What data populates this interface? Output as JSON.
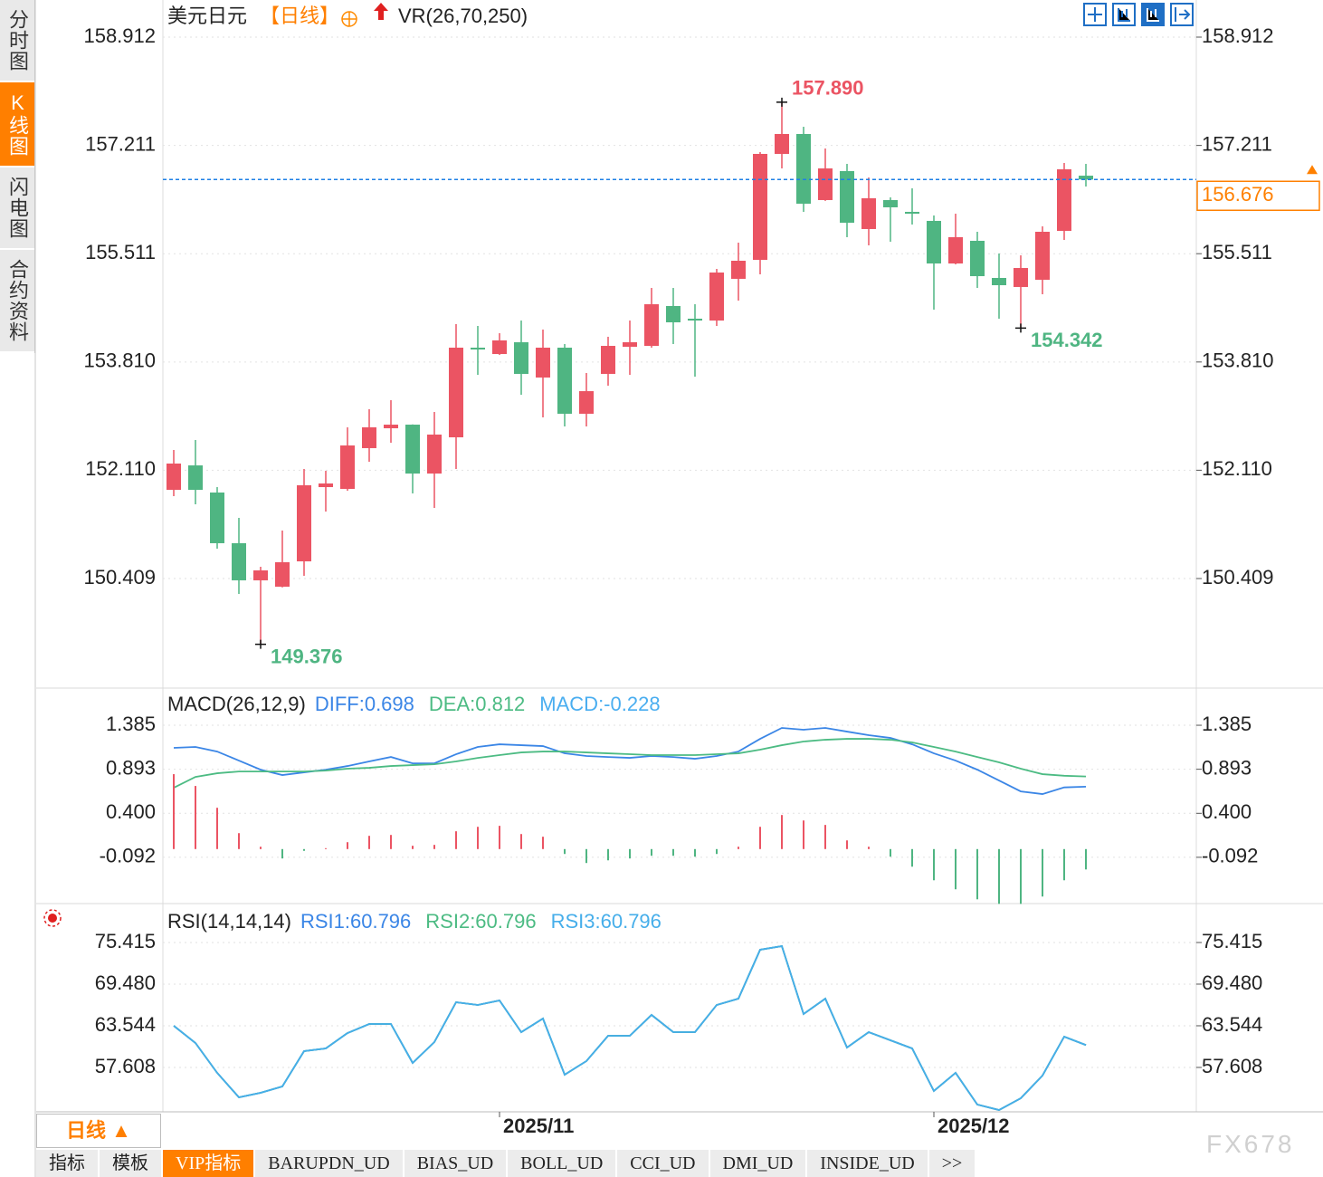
{
  "ui": {
    "sidebar_tabs": [
      "分时图",
      "K线图",
      "闪电图",
      "合约资料"
    ],
    "active_sidebar_tab": 1,
    "period": "日线",
    "period_arrow": "▲",
    "bottom_tabs": [
      "指标",
      "模板",
      "VIP指标",
      "BARUPDN_UD",
      "BIAS_UD",
      "BOLL_UD",
      "CCI_UD",
      "DMI_UD",
      "INSIDE_UD",
      ">>"
    ],
    "active_bottom_tab": 2,
    "watermark": "FX678"
  },
  "chart_data": [
    {
      "type": "candlestick",
      "title": "美元日元",
      "period": "【日线】",
      "indicator": "VR(26,70,250)",
      "categories": [
        null,
        null,
        null,
        null,
        null,
        null,
        null,
        null,
        null,
        null,
        null,
        null,
        null,
        null,
        null,
        "2025/11",
        null,
        null,
        null,
        null,
        null,
        null,
        null,
        null,
        null,
        null,
        null,
        null,
        null,
        null,
        null,
        null,
        null,
        null,
        null,
        "2025/12",
        null,
        null,
        null,
        null,
        null,
        null,
        null
      ],
      "open": [
        151.802,
        152.186,
        151.76,
        150.964,
        150.381,
        150.281,
        150.679,
        151.845,
        151.817,
        152.457,
        152.769,
        152.826,
        152.058,
        152.627,
        154.035,
        153.935,
        154.12,
        153.566,
        154.035,
        152.997,
        153.623,
        154.049,
        154.063,
        154.689,
        154.49,
        154.461,
        155.116,
        155.414,
        157.078,
        157.391,
        156.353,
        156.808,
        155.898,
        156.353,
        156.168,
        156.026,
        155.357,
        155.713,
        155.13,
        154.988,
        155.101,
        155.869,
        156.736
      ],
      "high": [
        152.428,
        152.585,
        151.845,
        151.362,
        150.594,
        151.163,
        152.13,
        152.101,
        152.784,
        153.068,
        153.21,
        152.83,
        153.025,
        154.405,
        154.376,
        154.262,
        154.461,
        154.319,
        154.092,
        153.637,
        154.206,
        154.461,
        154.973,
        154.973,
        154.717,
        155.272,
        155.684,
        157.106,
        157.89,
        157.504,
        157.163,
        156.921,
        156.708,
        156.395,
        156.537,
        156.111,
        156.139,
        155.855,
        155.514,
        155.485,
        155.94,
        156.936,
        156.921
      ],
      "low": [
        151.703,
        151.575,
        150.878,
        150.167,
        149.376,
        150.27,
        150.452,
        151.461,
        151.788,
        152.243,
        152.542,
        151.746,
        151.518,
        152.13,
        153.608,
        153.921,
        153.295,
        152.94,
        152.798,
        152.798,
        153.438,
        153.608,
        154.035,
        154.092,
        153.58,
        154.376,
        154.774,
        155.187,
        156.85,
        156.168,
        156.34,
        155.77,
        155.642,
        155.699,
        155.969,
        154.632,
        155.343,
        154.973,
        154.49,
        154.342,
        154.874,
        155.727,
        156.566
      ],
      "close": [
        152.215,
        151.802,
        150.964,
        150.381,
        150.537,
        150.665,
        151.874,
        151.902,
        152.499,
        152.784,
        152.826,
        152.058,
        152.67,
        154.035,
        154.006,
        154.149,
        153.623,
        154.035,
        152.997,
        153.352,
        154.063,
        154.12,
        154.717,
        154.433,
        154.461,
        155.215,
        155.4,
        157.078,
        157.391,
        156.296,
        156.85,
        155.997,
        156.381,
        156.239,
        156.139,
        155.357,
        155.77,
        155.158,
        155.016,
        155.286,
        155.855,
        156.836,
        156.676
      ],
      "up_color": "#eb5463",
      "down_color": "#4fb582",
      "ylim": [
        148.717,
        159.424
      ],
      "yticks": [
        {
          "value": 150.409,
          "label": "150.409"
        },
        {
          "value": 152.11,
          "label": "152.110"
        },
        {
          "value": 153.81,
          "label": "153.810"
        },
        155.511,
        157.211,
        158.912
      ],
      "grid": true,
      "last_price": 156.676,
      "last_price_color": "#ff8000",
      "annotations": [
        {
          "value": 157.89,
          "label": "157.890"
        },
        149.376,
        154.342
      ]
    },
    {
      "type": "macd",
      "title": "MACD(26,12,9)",
      "series": [
        {
          "name": "DIFF:0.698",
          "color": "#3b86e6",
          "values": [
            1.132,
            1.142,
            1.091,
            0.99,
            0.888,
            0.828,
            0.858,
            0.888,
            0.929,
            0.98,
            1.03,
            0.959,
            0.959,
            1.061,
            1.142,
            1.172,
            1.162,
            1.152,
            1.071,
            1.041,
            1.03,
            1.02,
            1.041,
            1.03,
            1.01,
            1.041,
            1.091,
            1.233,
            1.355,
            1.335,
            1.355,
            1.314,
            1.274,
            1.243,
            1.172,
            1.071,
            0.99,
            0.888,
            0.767,
            0.645,
            0.615,
            0.69,
            0.698
          ]
        },
        {
          "name": "DEA:0.812",
          "color": "#4cbb83",
          "values": [
            0.686,
            0.807,
            0.848,
            0.868,
            0.868,
            0.868,
            0.868,
            0.878,
            0.899,
            0.909,
            0.929,
            0.939,
            0.949,
            0.98,
            1.02,
            1.051,
            1.081,
            1.091,
            1.091,
            1.081,
            1.071,
            1.061,
            1.051,
            1.051,
            1.051,
            1.061,
            1.071,
            1.112,
            1.162,
            1.203,
            1.223,
            1.233,
            1.233,
            1.223,
            1.193,
            1.142,
            1.091,
            1.03,
            0.97,
            0.899,
            0.838,
            0.82,
            0.812
          ]
        },
        {
          "name": "MACD:-0.228",
          "color": "#4aaef0",
          "style": "bar",
          "values": [
            0.838,
            0.706,
            0.462,
            0.178,
            0.026,
            -0.105,
            -0.02,
            0.01,
            0.077,
            0.148,
            0.158,
            0.037,
            0.047,
            0.199,
            0.249,
            0.26,
            0.168,
            0.138,
            -0.055,
            -0.156,
            -0.126,
            -0.105,
            -0.075,
            -0.075,
            -0.085,
            -0.055,
            0.026,
            0.249,
            0.381,
            0.32,
            0.27,
            0.097,
            0.026,
            -0.085,
            -0.197,
            -0.349,
            -0.45,
            -0.562,
            -0.613,
            -0.613,
            -0.531,
            -0.349,
            -0.228
          ]
        }
      ],
      "up_color": "#eb5463",
      "down_color": "#4fb582",
      "ylim": [
        -0.64,
        1.75
      ],
      "yticks": [
        -0.092,
        {
          "value": 0.4,
          "label": "0.400"
        },
        0.893,
        1.385
      ],
      "grid": true
    },
    {
      "type": "line",
      "title": "RSI(14,14,14)",
      "series": [
        {
          "name": "RSI1:60.796",
          "color": "#3b86e6",
          "values": [
            63.542,
            61.09,
            56.832,
            53.347,
            53.993,
            54.896,
            59.929,
            60.316,
            62.51,
            63.8,
            63.8,
            58.251,
            61.219,
            66.898,
            66.511,
            67.156,
            62.639,
            64.575,
            56.574,
            58.509,
            62.123,
            62.123,
            65.091,
            62.639,
            62.639,
            66.511,
            67.414,
            74.383,
            74.899,
            65.22,
            67.414,
            60.445,
            62.639,
            61.478,
            60.316,
            54.251,
            56.832,
            52.315,
            51.541,
            53.218,
            56.445,
            61.994,
            60.796
          ]
        },
        {
          "name": "RSI2:60.796",
          "color": "#4cbb83",
          "values": [
            63.542,
            61.09,
            56.832,
            53.347,
            53.993,
            54.896,
            59.929,
            60.316,
            62.51,
            63.8,
            63.8,
            58.251,
            61.219,
            66.898,
            66.511,
            67.156,
            62.639,
            64.575,
            56.574,
            58.509,
            62.123,
            62.123,
            65.091,
            62.639,
            62.639,
            66.511,
            67.414,
            74.383,
            74.899,
            65.22,
            67.414,
            60.445,
            62.639,
            61.478,
            60.316,
            54.251,
            56.832,
            52.315,
            51.541,
            53.218,
            56.445,
            61.994,
            60.796
          ]
        },
        {
          "name": "RSI3:60.796",
          "color": "#46aeea",
          "values": [
            63.542,
            61.09,
            56.832,
            53.347,
            53.993,
            54.896,
            59.929,
            60.316,
            62.51,
            63.8,
            63.8,
            58.251,
            61.219,
            66.898,
            66.511,
            67.156,
            62.639,
            64.575,
            56.574,
            58.509,
            62.123,
            62.123,
            65.091,
            62.639,
            62.639,
            66.511,
            67.414,
            74.383,
            74.899,
            65.22,
            67.414,
            60.445,
            62.639,
            61.478,
            60.316,
            54.251,
            56.832,
            52.315,
            51.541,
            53.218,
            56.445,
            61.994,
            60.796
          ]
        }
      ],
      "ylim": [
        51.41,
        80.06
      ],
      "yticks": [
        57.608,
        63.544,
        {
          "value": 69.48,
          "label": "69.480"
        },
        75.415
      ],
      "grid": true
    }
  ]
}
